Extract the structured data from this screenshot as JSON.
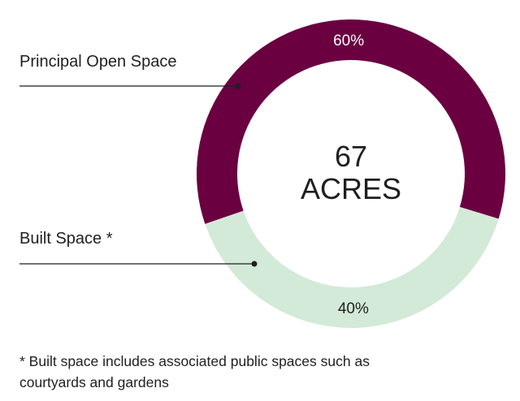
{
  "chart_data": {
    "type": "pie",
    "donut": true,
    "center_value": "67",
    "center_unit": "ACRES",
    "slices": [
      {
        "label": "Principal Open Space",
        "value": 40,
        "value_label": "40%",
        "color": "#d4ead8",
        "text_color": "#1f1f1f"
      },
      {
        "label": "Built Space *",
        "value": 60,
        "value_label": "60%",
        "color": "#6b0040",
        "text_color": "#ffffff"
      }
    ],
    "footnote_lines": [
      "* Built space includes associated public spaces such as",
      "courtyards and gardens"
    ]
  }
}
